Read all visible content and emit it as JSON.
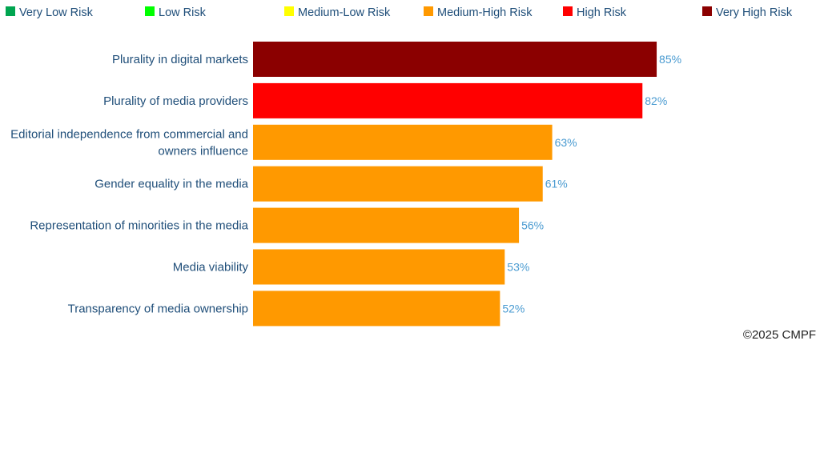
{
  "chart_data": {
    "type": "bar",
    "orientation": "horizontal",
    "title": "",
    "xlabel": "",
    "ylabel": "",
    "xlim": [
      0,
      100
    ],
    "value_suffix": "%",
    "categories": [
      [
        "Plurality in digital markets"
      ],
      [
        "Plurality of media providers"
      ],
      [
        "Editorial independence from commercial and",
        "owners influence"
      ],
      [
        "Gender equality in the media"
      ],
      [
        "Representation of minorities in the media"
      ],
      [
        "Media viability"
      ],
      [
        "Transparency of media ownership"
      ]
    ],
    "values": [
      85,
      82,
      63,
      61,
      56,
      53,
      52
    ],
    "bar_colors": [
      "#8B0000",
      "#FF0000",
      "#FF9900",
      "#FF9900",
      "#FF9900",
      "#FF9900",
      "#FF9900"
    ],
    "legend": [
      {
        "label": "Very Low Risk",
        "color": "#00A550"
      },
      {
        "label": "Low Risk",
        "color": "#00FF00"
      },
      {
        "label": "Medium-Low Risk",
        "color": "#FFFF00"
      },
      {
        "label": "Medium-High Risk",
        "color": "#FF9900"
      },
      {
        "label": "High Risk",
        "color": "#FF0000"
      },
      {
        "label": "Very High Risk",
        "color": "#8B0000"
      }
    ],
    "legend_position": "top",
    "grid": false
  },
  "footer": {
    "copyright": "©2025 CMPF"
  }
}
